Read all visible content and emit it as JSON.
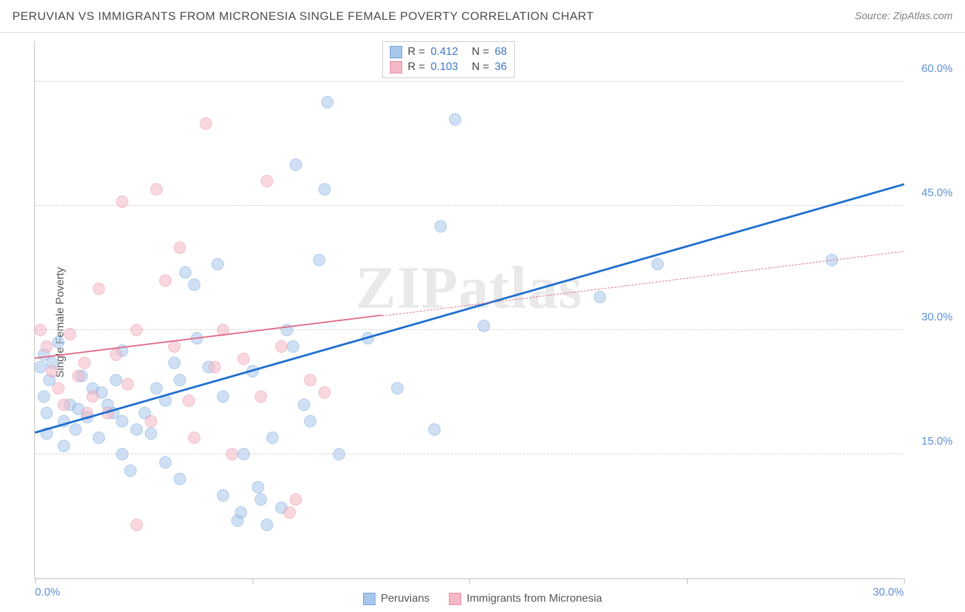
{
  "header": {
    "title": "PERUVIAN VS IMMIGRANTS FROM MICRONESIA SINGLE FEMALE POVERTY CORRELATION CHART",
    "source": "Source: ZipAtlas.com"
  },
  "chart": {
    "type": "scatter",
    "ylabel": "Single Female Poverty",
    "watermark": "ZIPatlas",
    "xlim": [
      0,
      30
    ],
    "ylim": [
      0,
      65
    ],
    "x_ticks": [
      0,
      7.5,
      15,
      22.5,
      30
    ],
    "x_tick_labels": [
      "0.0%",
      "",
      "",
      "",
      "30.0%"
    ],
    "y_gridlines": [
      15,
      30,
      45,
      60
    ],
    "y_tick_labels": [
      "15.0%",
      "30.0%",
      "45.0%",
      "60.0%"
    ],
    "tick_label_color": "#5b8fd6",
    "axis_color": "#bfbfbf",
    "grid_color": "#d0d0d0",
    "background_color": "#ffffff",
    "marker_radius": 9,
    "marker_opacity": 0.55,
    "series": [
      {
        "name": "Peruvians",
        "color_fill": "#a8c7ec",
        "color_stroke": "#6f9fd8",
        "trend_color": "#1f6fd0",
        "trend_width": 3,
        "trend_dash": "solid",
        "trend_line": {
          "x1": 0,
          "y1": 17.5,
          "x2": 30,
          "y2": 47.5
        },
        "R": "0.412",
        "N": "68",
        "points": [
          [
            0.2,
            25.5
          ],
          [
            0.3,
            22
          ],
          [
            0.3,
            27
          ],
          [
            0.4,
            20
          ],
          [
            0.5,
            24
          ],
          [
            0.6,
            26
          ],
          [
            0.4,
            17.5
          ],
          [
            1.0,
            19
          ],
          [
            1.2,
            21
          ],
          [
            1.4,
            18
          ],
          [
            1.5,
            20.5
          ],
          [
            1.6,
            24.5
          ],
          [
            1.8,
            19.5
          ],
          [
            2.0,
            23
          ],
          [
            2.2,
            17
          ],
          [
            2.3,
            22.5
          ],
          [
            2.5,
            21
          ],
          [
            2.7,
            20
          ],
          [
            2.8,
            24
          ],
          [
            3.0,
            19
          ],
          [
            3.0,
            15
          ],
          [
            3.3,
            13
          ],
          [
            3.5,
            18
          ],
          [
            3.8,
            20
          ],
          [
            4.0,
            17.5
          ],
          [
            4.2,
            23
          ],
          [
            4.5,
            21.5
          ],
          [
            4.8,
            26
          ],
          [
            5.0,
            24
          ],
          [
            5.2,
            37
          ],
          [
            5.5,
            35.5
          ],
          [
            5.6,
            29
          ],
          [
            6.0,
            25.5
          ],
          [
            6.3,
            38
          ],
          [
            6.5,
            22
          ],
          [
            6.5,
            10
          ],
          [
            7.0,
            7
          ],
          [
            7.1,
            8
          ],
          [
            7.2,
            15
          ],
          [
            7.5,
            25
          ],
          [
            7.7,
            11
          ],
          [
            7.8,
            9.5
          ],
          [
            8.0,
            6.5
          ],
          [
            8.2,
            17
          ],
          [
            8.5,
            8.5
          ],
          [
            8.7,
            30
          ],
          [
            8.9,
            28
          ],
          [
            9.0,
            50
          ],
          [
            9.3,
            21
          ],
          [
            9.5,
            19
          ],
          [
            9.8,
            38.5
          ],
          [
            10.0,
            47
          ],
          [
            10.1,
            57.5
          ],
          [
            10.5,
            15
          ],
          [
            11.5,
            29
          ],
          [
            12.5,
            23
          ],
          [
            13.8,
            18
          ],
          [
            14.0,
            42.5
          ],
          [
            14.5,
            55.5
          ],
          [
            15.5,
            30.5
          ],
          [
            19.5,
            34
          ],
          [
            21.5,
            38
          ],
          [
            27.5,
            38.5
          ],
          [
            5.0,
            12
          ],
          [
            3.0,
            27.5
          ],
          [
            1.0,
            16
          ],
          [
            0.8,
            28.5
          ],
          [
            4.5,
            14
          ]
        ]
      },
      {
        "name": "Immigrants from Micronesia",
        "color_fill": "#f4b8c6",
        "color_stroke": "#e88aa2",
        "trend_color": "#e06b88",
        "trend_width": 2,
        "solid_until_x": 12,
        "trend_line": {
          "x1": 0,
          "y1": 26.5,
          "x2": 30,
          "y2": 39.5
        },
        "R": "0.103",
        "N": "36",
        "points": [
          [
            0.2,
            30
          ],
          [
            0.4,
            28
          ],
          [
            0.6,
            25
          ],
          [
            0.8,
            23
          ],
          [
            1.0,
            21
          ],
          [
            1.2,
            29.5
          ],
          [
            1.5,
            24.5
          ],
          [
            1.7,
            26
          ],
          [
            2.0,
            22
          ],
          [
            2.2,
            35
          ],
          [
            2.5,
            20
          ],
          [
            2.8,
            27
          ],
          [
            3.0,
            45.5
          ],
          [
            3.2,
            23.5
          ],
          [
            3.5,
            30
          ],
          [
            4.0,
            19
          ],
          [
            4.2,
            47
          ],
          [
            4.5,
            36
          ],
          [
            4.8,
            28
          ],
          [
            5.0,
            40
          ],
          [
            5.3,
            21.5
          ],
          [
            5.5,
            17
          ],
          [
            5.9,
            55
          ],
          [
            6.2,
            25.5
          ],
          [
            6.5,
            30
          ],
          [
            6.8,
            15
          ],
          [
            7.2,
            26.5
          ],
          [
            7.8,
            22
          ],
          [
            8.0,
            48
          ],
          [
            8.5,
            28
          ],
          [
            8.8,
            8
          ],
          [
            9.0,
            9.5
          ],
          [
            9.5,
            24
          ],
          [
            10.0,
            22.5
          ],
          [
            3.5,
            6.5
          ],
          [
            1.8,
            20
          ]
        ]
      }
    ],
    "legend": {
      "items": [
        {
          "label": "Peruvians",
          "fill": "#a8c7ec",
          "stroke": "#6f9fd8"
        },
        {
          "label": "Immigrants from Micronesia",
          "fill": "#f4b8c6",
          "stroke": "#e88aa2"
        }
      ]
    }
  }
}
